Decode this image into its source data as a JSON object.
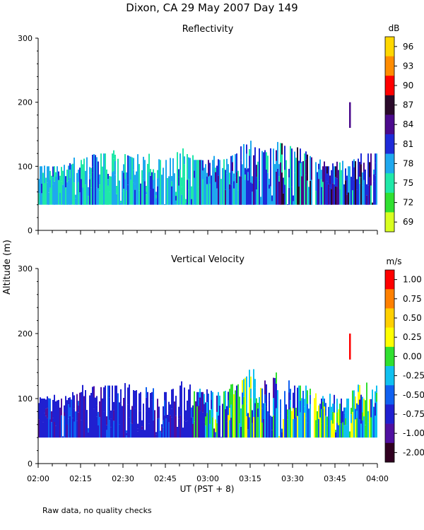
{
  "figure": {
    "title": "Dixon, CA 29 May 2007  Day 149",
    "ylabel": "Altitude (m)",
    "xlabel": "UT  (PST + 8)",
    "footnote": "Raw data, no quality checks",
    "x_tick_labels": [
      "02:00",
      "02:15",
      "02:30",
      "02:45",
      "03:00",
      "03:15",
      "03:30",
      "03:45",
      "04:00"
    ]
  },
  "chart_data": [
    {
      "type": "heatmap",
      "title": "Reflectivity",
      "xlabel": "UT  (PST + 8)",
      "ylabel": "Altitude (m)",
      "xlim": [
        "02:00",
        "04:00"
      ],
      "ylim": [
        0,
        300
      ],
      "y_ticks": [
        0,
        100,
        200,
        300
      ],
      "colorbar": {
        "unit": "dB",
        "ticks": [
          "96",
          "93",
          "90",
          "87",
          "84",
          "81",
          "78",
          "75",
          "72",
          "69"
        ],
        "colors": [
          "#ffd700",
          "#ff8c00",
          "#ff0000",
          "#2a0a2a",
          "#4b0a8c",
          "#1e2ad8",
          "#1fa8ee",
          "#20e8a8",
          "#30e030",
          "#d8ff20"
        ]
      },
      "series": [
        {
          "name": "echo_top_m",
          "x_min": [
            0,
            5,
            10,
            15,
            20,
            25,
            30,
            35,
            40,
            45,
            50,
            55,
            60,
            65,
            70,
            75,
            80,
            85,
            90,
            95,
            100,
            105,
            110,
            115,
            120
          ],
          "values": [
            100,
            100,
            100,
            110,
            120,
            120,
            120,
            110,
            110,
            110,
            120,
            110,
            110,
            110,
            120,
            140,
            120,
            140,
            120,
            120,
            100,
            100,
            100,
            120,
            120
          ]
        },
        {
          "name": "echo_base_m",
          "x_min": [
            0,
            120
          ],
          "values": [
            40,
            40
          ]
        },
        {
          "name": "isolated_return",
          "x_min": [
            110
          ],
          "y_range_m": [
            160,
            200
          ],
          "value_db": 84
        }
      ]
    },
    {
      "type": "heatmap",
      "title": "Vertical Velocity",
      "xlabel": "UT  (PST + 8)",
      "ylabel": "Altitude (m)",
      "xlim": [
        "02:00",
        "04:00"
      ],
      "ylim": [
        0,
        300
      ],
      "y_ticks": [
        0,
        100,
        200,
        300
      ],
      "colorbar": {
        "unit": "m/s",
        "ticks": [
          "1.00",
          "0.75",
          "0.50",
          "0.25",
          "0.00",
          "-0.25",
          "-0.50",
          "-0.75",
          "-1.00",
          "-2.00"
        ],
        "colors": [
          "#ff0000",
          "#ff8000",
          "#ffd000",
          "#ffff00",
          "#30e030",
          "#10c0f0",
          "#1060f0",
          "#2020d0",
          "#5010a0",
          "#300020"
        ]
      },
      "series": [
        {
          "name": "echo_top_m",
          "x_min": [
            0,
            5,
            10,
            15,
            20,
            25,
            30,
            35,
            40,
            45,
            50,
            55,
            60,
            65,
            70,
            75,
            80,
            85,
            90,
            95,
            100,
            105,
            110,
            115,
            120
          ],
          "values": [
            100,
            100,
            100,
            110,
            120,
            120,
            120,
            110,
            110,
            110,
            120,
            110,
            110,
            110,
            120,
            140,
            120,
            140,
            120,
            120,
            100,
            100,
            100,
            120,
            120
          ]
        },
        {
          "name": "echo_base_m",
          "x_min": [
            0,
            120
          ],
          "values": [
            40,
            40
          ]
        },
        {
          "name": "isolated_return",
          "x_min": [
            110
          ],
          "y_range_m": [
            160,
            200
          ],
          "value_ms": 1.0
        }
      ]
    }
  ]
}
